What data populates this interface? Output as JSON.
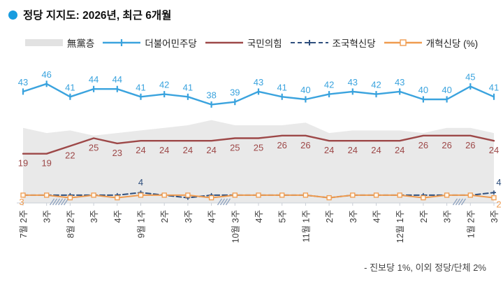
{
  "title": {
    "text": "정당 지지도: 2026년, 최근 6개월"
  },
  "colors": {
    "bullet": "#189cdf",
    "band": "#e9e9e9",
    "band_legend": "#e2e2e2",
    "democratic": "#3aa3de",
    "ppp": "#9d4848",
    "rebuilding": "#2f4f7d",
    "reform": "#ef9b4f",
    "axis": "#c9ced6",
    "hatch": "#8fa3c0",
    "xlabel": "#3a3a3a"
  },
  "legend": [
    {
      "label": "無黨층",
      "type": "band"
    },
    {
      "label": "더불어민주당",
      "type": "line-tick"
    },
    {
      "label": "국민의힘",
      "type": "line"
    },
    {
      "label": "조국혁신당",
      "type": "dashed-plus"
    },
    {
      "label": "개혁신당 (%)",
      "type": "line-square"
    }
  ],
  "footnote": "- 진보당 1%, 이외 정당/단체 2%",
  "chart_data": {
    "type": "line",
    "title": "정당 지지도: 2026년, 최근 6개월",
    "unit": "%",
    "ylim": [
      0,
      50
    ],
    "grid": false,
    "legend_position": "top",
    "categories": [
      "7월 2주",
      "3주",
      "8월 2주",
      "3주",
      "4주",
      "9월 1주",
      "2주",
      "3주",
      "4주",
      "10월 3주",
      "4주",
      "5주",
      "11월 1주",
      "2주",
      "3주",
      "4주",
      "12월 1주",
      "2주",
      "3주",
      "1월 2주",
      "3주"
    ],
    "axis_breaks_after_index": [
      1,
      8,
      18
    ],
    "series": [
      {
        "name": "無黨층",
        "kind": "area-band",
        "estimated": true,
        "values": [
          29,
          27,
          28,
          26,
          27,
          28,
          29,
          30,
          32,
          30,
          30,
          30,
          31,
          27,
          28,
          28,
          28,
          27,
          29,
          29,
          27
        ]
      },
      {
        "name": "더불어민주당",
        "kind": "line",
        "labeled": true,
        "values": [
          43,
          46,
          41,
          44,
          44,
          41,
          42,
          41,
          38,
          39,
          43,
          41,
          40,
          42,
          43,
          42,
          43,
          40,
          40,
          45,
          41
        ]
      },
      {
        "name": "국민의힘",
        "kind": "line",
        "labeled": true,
        "values": [
          19,
          19,
          22,
          25,
          23,
          24,
          24,
          24,
          24,
          25,
          25,
          26,
          26,
          24,
          24,
          24,
          24,
          26,
          26,
          26,
          24
        ]
      },
      {
        "name": "조국혁신당",
        "kind": "dashed-line",
        "estimated_between_labels": true,
        "values": [
          3,
          3,
          3,
          3,
          3,
          4,
          3,
          2,
          3,
          3,
          3,
          3,
          3,
          2,
          3,
          3,
          3,
          3,
          3,
          3,
          4
        ],
        "point_labels": {
          "5": "4",
          "20": "4"
        }
      },
      {
        "name": "개혁신당",
        "kind": "line-square-marker",
        "estimated_between_labels": true,
        "values": [
          3,
          3,
          2,
          3,
          2,
          3,
          3,
          3,
          2,
          3,
          3,
          3,
          3,
          2,
          3,
          3,
          3,
          2,
          3,
          3,
          2
        ],
        "point_labels": {
          "0": "3",
          "20": "2"
        }
      }
    ]
  }
}
